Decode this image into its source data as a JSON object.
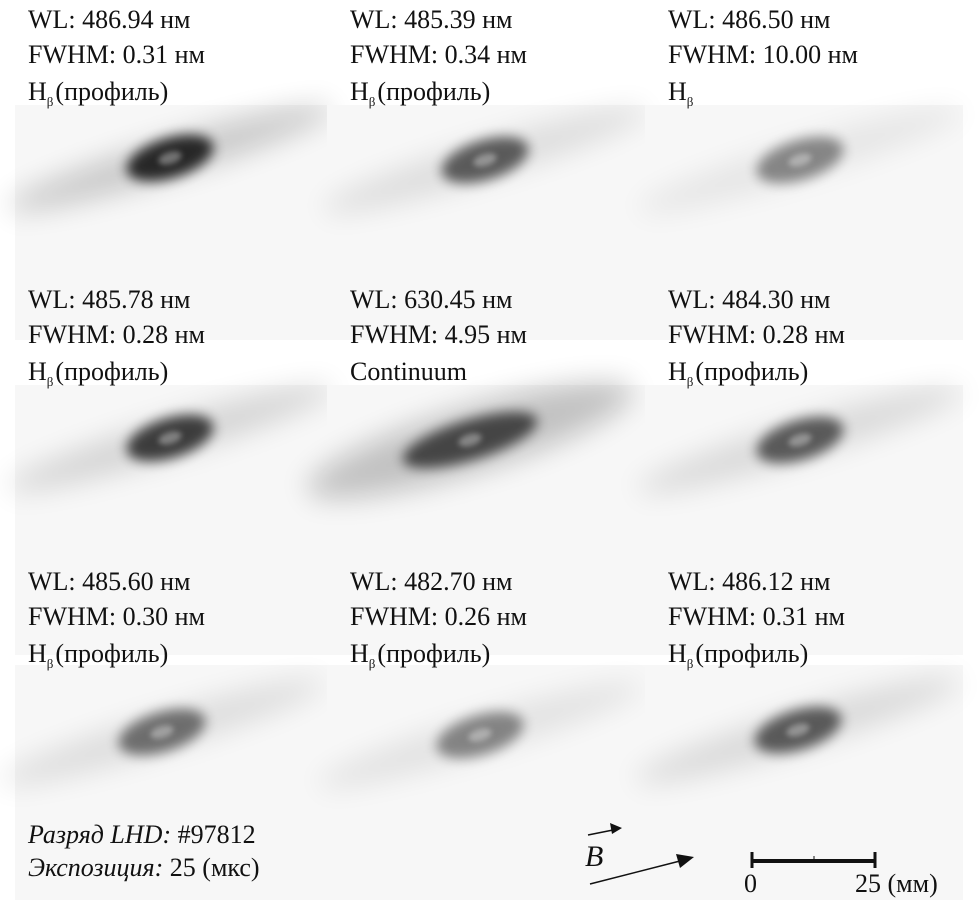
{
  "panels": [
    {
      "wl": "WL: 486.94 нм",
      "fwhm": "FWHM: 0.31 нм",
      "line": {
        "base": "H",
        "sub": "β",
        "rest": "(профиль)"
      }
    },
    {
      "wl": "WL: 485.39 нм",
      "fwhm": "FWHM: 0.34 нм",
      "line": {
        "base": "H",
        "sub": "β",
        "rest": "(профиль)"
      }
    },
    {
      "wl": "WL: 486.50 нм",
      "fwhm": "FWHM: 10.00 нм",
      "line": {
        "base": "H",
        "sub": "β"
      }
    },
    {
      "wl": "WL: 485.78 нм",
      "fwhm": "FWHM: 0.28 нм",
      "line": {
        "base": "H",
        "sub": "β",
        "rest": "(профиль)"
      }
    },
    {
      "wl": "WL: 630.45 нм",
      "fwhm": "FWHM: 4.95 нм",
      "line": {
        "base": "Continuum"
      }
    },
    {
      "wl": "WL: 484.30 нм",
      "fwhm": "FWHM: 0.28 нм",
      "line": {
        "base": "H",
        "sub": "β",
        "rest": "(профиль)"
      }
    },
    {
      "wl": "WL: 485.60 нм",
      "fwhm": "FWHM: 0.30 нм",
      "line": {
        "base": "H",
        "sub": "β",
        "rest": "(профиль)"
      }
    },
    {
      "wl": "WL: 482.70 нм",
      "fwhm": "FWHM: 0.26 нм",
      "line": {
        "base": "H",
        "sub": "β",
        "rest": "(профиль)"
      }
    },
    {
      "wl": "WL: 486.12 нм",
      "fwhm": "FWHM: 0.31 нм",
      "line": {
        "base": "H",
        "sub": "β",
        "rest": "(профиль)"
      }
    }
  ],
  "footer": {
    "discharge_label": "Разряд LHD:",
    "discharge_value": "#97812",
    "exposure_label": "Экспозиция:",
    "exposure_value": "25 (мкс)"
  },
  "field": {
    "label": "B"
  },
  "scale": {
    "start": "0",
    "end": "25 (мм)"
  }
}
